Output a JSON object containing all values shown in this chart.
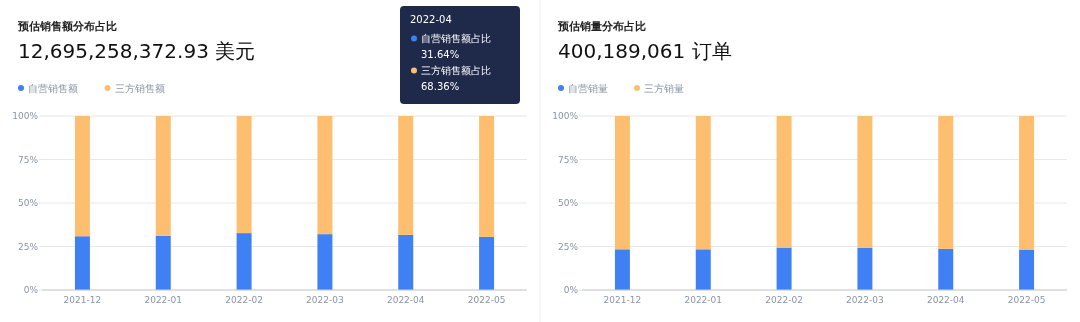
{
  "chart_data": [
    {
      "type": "bar",
      "title": "预估销售额分布占比",
      "subtitle": "12,695,258,372.93 美元",
      "stacked": true,
      "categories": [
        "2021-12",
        "2022-01",
        "2022-02",
        "2022-03",
        "2022-04",
        "2022-05"
      ],
      "series": [
        {
          "name": "自营销售额",
          "color": "#4080f5",
          "values": [
            30.9,
            31.1,
            32.7,
            32.1,
            31.64,
            30.5
          ]
        },
        {
          "name": "三方销售额",
          "color": "#fdbf6f",
          "values": [
            69.1,
            68.9,
            67.3,
            67.9,
            68.36,
            69.5
          ]
        }
      ],
      "ylim": [
        0,
        100
      ],
      "yticks": [
        {
          "value": 0,
          "label": "0%"
        },
        {
          "value": 25,
          "label": "25%"
        },
        {
          "value": 50,
          "label": "50%"
        },
        {
          "value": 75,
          "label": "75%"
        },
        {
          "value": 100,
          "label": "100%"
        }
      ],
      "grid": "y",
      "legend": "top left",
      "annotations": [
        "2022-04",
        "自营销售额占比",
        "31.64%",
        "三方销售额占比",
        "68.36%"
      ]
    },
    {
      "type": "bar",
      "title": "预估销量分布占比",
      "subtitle": "400,189,061 订单",
      "stacked": true,
      "categories": [
        "2021-12",
        "2022-01",
        "2022-02",
        "2022-03",
        "2022-04",
        "2022-05"
      ],
      "series": [
        {
          "name": "自营销量",
          "color": "#4080f5",
          "values": [
            23.4,
            23.4,
            24.4,
            24.2,
            23.6,
            23.0
          ]
        },
        {
          "name": "三方销量",
          "color": "#fdbf6f",
          "values": [
            76.6,
            76.6,
            75.6,
            75.8,
            76.4,
            77.0
          ]
        }
      ],
      "ylim": [
        0,
        100
      ],
      "yticks": [
        {
          "value": 0,
          "label": "0%"
        },
        {
          "value": 25,
          "label": "25%"
        },
        {
          "value": 50,
          "label": "50%"
        },
        {
          "value": 75,
          "label": "75%"
        },
        {
          "value": 100,
          "label": "100%"
        }
      ],
      "grid": "y",
      "legend": "top left"
    }
  ]
}
